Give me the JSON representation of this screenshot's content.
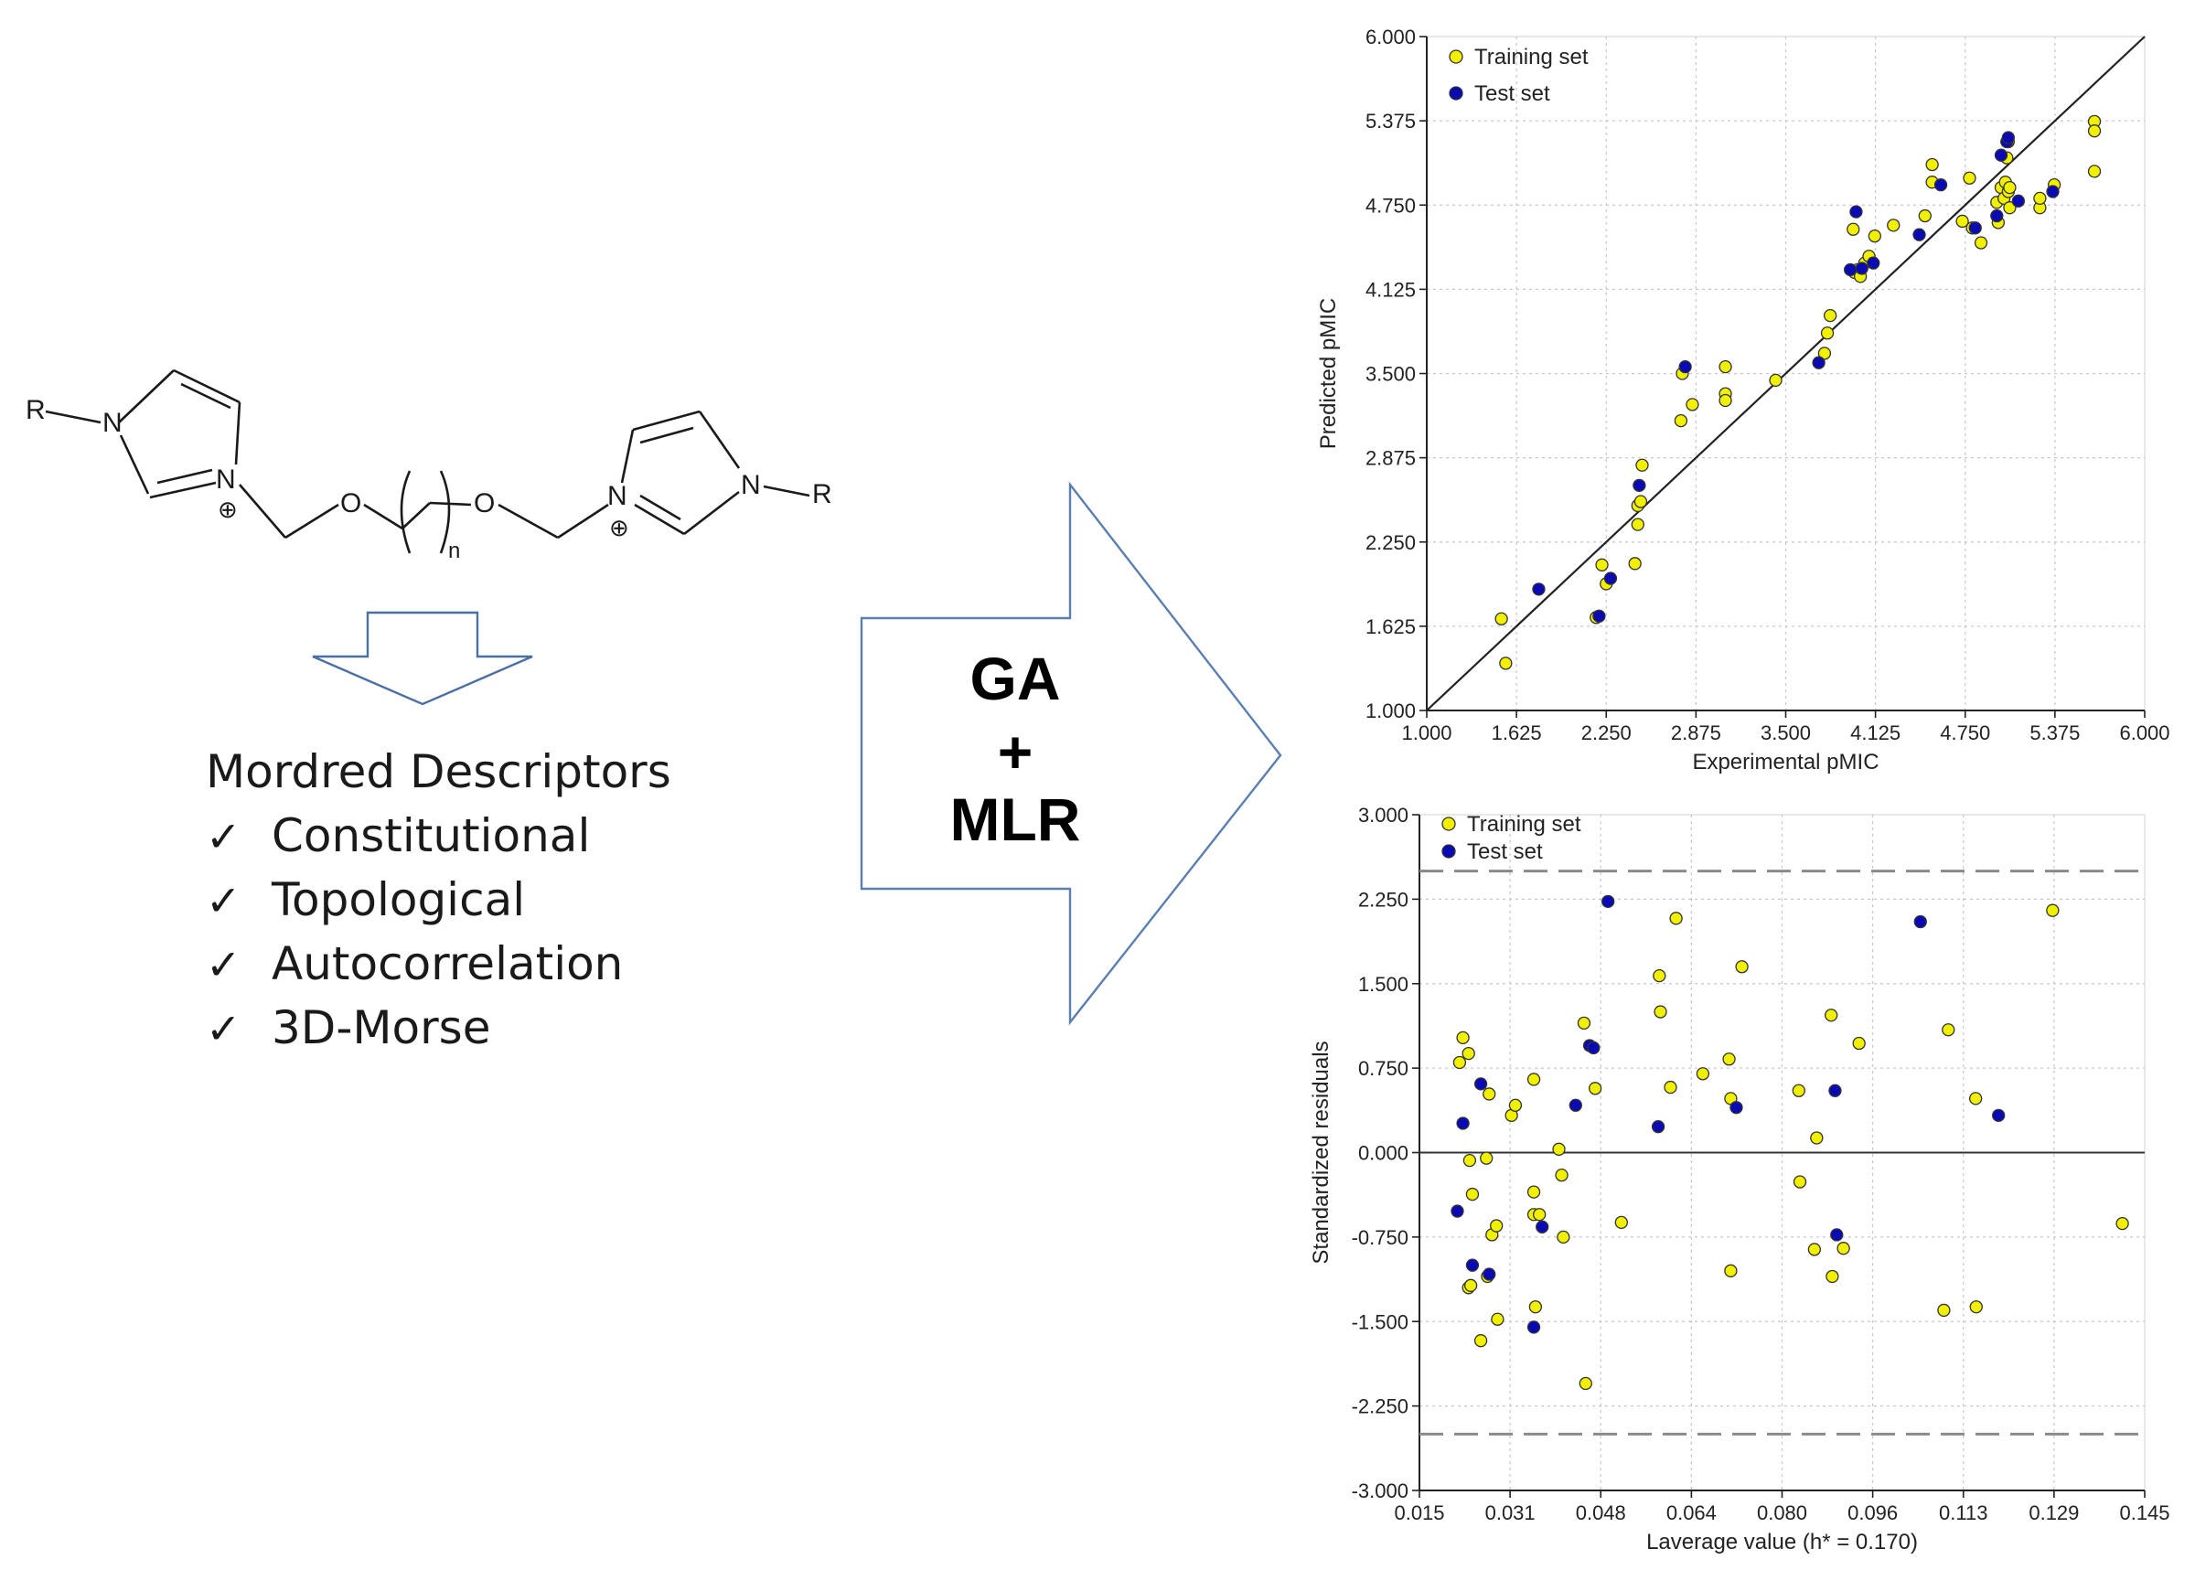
{
  "molecule": {
    "r_left": "R",
    "n_left": "N",
    "n_plus_left": "N",
    "o_left": "O",
    "subscript_n": "n",
    "o_right": "O",
    "n_plus_right": "N",
    "n_right": "N",
    "r_right": "R",
    "charge_symbol": "⊕"
  },
  "descriptors": {
    "title": "Mordred Descriptors",
    "check_symbol": "✓",
    "items": [
      "Constitutional",
      "Topological",
      "Autocorrelation",
      "3D-Morse"
    ]
  },
  "method_arrow": {
    "line1": "GA",
    "line2": "+",
    "line3": "MLR"
  },
  "chart_data": [
    {
      "type": "scatter",
      "title": "",
      "xlabel": "Experimental pMIC",
      "ylabel": "Predicted pMIC",
      "xlim": [
        1.0,
        6.0
      ],
      "ylim": [
        1.0,
        6.0
      ],
      "x_ticks": [
        "1.000",
        "1.625",
        "2.250",
        "2.875",
        "3.500",
        "4.125",
        "4.750",
        "5.375",
        "6.000"
      ],
      "y_ticks": [
        "1.000",
        "1.625",
        "2.250",
        "2.875",
        "3.500",
        "4.125",
        "4.750",
        "5.375",
        "6.000"
      ],
      "grid": true,
      "legend_position": "top-left",
      "reference_line": {
        "from": [
          1.0,
          1.0
        ],
        "to": [
          6.0,
          6.0
        ]
      },
      "series": [
        {
          "name": "Training set",
          "color": "#f0f000",
          "points": [
            [
              1.52,
              1.68
            ],
            [
              1.55,
              1.35
            ],
            [
              2.18,
              1.69
            ],
            [
              2.22,
              2.08
            ],
            [
              2.25,
              1.94
            ],
            [
              2.45,
              2.09
            ],
            [
              2.47,
              2.38
            ],
            [
              2.47,
              2.52
            ],
            [
              2.49,
              2.55
            ],
            [
              2.5,
              2.82
            ],
            [
              2.77,
              3.15
            ],
            [
              2.78,
              3.5
            ],
            [
              2.85,
              3.27
            ],
            [
              3.08,
              3.55
            ],
            [
              3.08,
              3.35
            ],
            [
              3.08,
              3.3
            ],
            [
              3.43,
              3.45
            ],
            [
              3.77,
              3.65
            ],
            [
              3.79,
              3.8
            ],
            [
              3.81,
              3.93
            ],
            [
              3.97,
              4.57
            ],
            [
              3.98,
              4.25
            ],
            [
              4.0,
              4.27
            ],
            [
              4.02,
              4.22
            ],
            [
              4.05,
              4.32
            ],
            [
              4.08,
              4.37
            ],
            [
              4.12,
              4.52
            ],
            [
              4.25,
              4.6
            ],
            [
              4.47,
              4.67
            ],
            [
              4.52,
              4.92
            ],
            [
              4.52,
              5.05
            ],
            [
              4.73,
              4.63
            ],
            [
              4.78,
              4.95
            ],
            [
              4.8,
              4.58
            ],
            [
              4.86,
              4.47
            ],
            [
              4.97,
              4.77
            ],
            [
              4.98,
              4.62
            ],
            [
              5.0,
              4.88
            ],
            [
              5.02,
              4.8
            ],
            [
              5.03,
              4.92
            ],
            [
              5.04,
              5.1
            ],
            [
              5.05,
              5.22
            ],
            [
              5.05,
              4.85
            ],
            [
              5.06,
              4.73
            ],
            [
              5.06,
              4.88
            ],
            [
              5.27,
              4.73
            ],
            [
              5.27,
              4.8
            ],
            [
              5.37,
              4.9
            ],
            [
              5.65,
              5.37
            ],
            [
              5.65,
              5.3
            ],
            [
              5.65,
              5.0
            ]
          ]
        },
        {
          "name": "Test set",
          "color": "#0a0ab4",
          "points": [
            [
              1.78,
              1.9
            ],
            [
              2.2,
              1.7
            ],
            [
              2.28,
              1.98
            ],
            [
              2.48,
              2.67
            ],
            [
              2.8,
              3.55
            ],
            [
              3.73,
              3.58
            ],
            [
              3.95,
              4.27
            ],
            [
              3.99,
              4.7
            ],
            [
              4.03,
              4.28
            ],
            [
              4.11,
              4.32
            ],
            [
              4.43,
              4.53
            ],
            [
              4.58,
              4.9
            ],
            [
              4.82,
              4.58
            ],
            [
              4.97,
              4.67
            ],
            [
              5.0,
              5.12
            ],
            [
              5.04,
              5.22
            ],
            [
              5.05,
              5.25
            ],
            [
              5.12,
              4.78
            ],
            [
              5.36,
              4.85
            ]
          ]
        }
      ]
    },
    {
      "type": "scatter",
      "title": "",
      "xlabel": "Laverage value (h* = 0.170)",
      "ylabel": "Standardized residuals",
      "xlim": [
        0.015,
        0.145
      ],
      "ylim": [
        -3.0,
        3.0
      ],
      "x_ticks": [
        "0.015",
        "0.031",
        "0.048",
        "0.064",
        "0.080",
        "0.096",
        "0.113",
        "0.129",
        "0.145"
      ],
      "y_ticks": [
        "3.000",
        "2.250",
        "1.500",
        "0.750",
        "0.000",
        "-0.750",
        "-1.500",
        "-2.250",
        "-3.000"
      ],
      "grid": true,
      "legend_position": "top-left",
      "zero_line": 0.0,
      "threshold_lines": [
        2.5,
        -2.5
      ],
      "series": [
        {
          "name": "Training set",
          "color": "#f0f000",
          "points": [
            [
              0.0222,
              0.8
            ],
            [
              0.0228,
              1.02
            ],
            [
              0.0238,
              0.88
            ],
            [
              0.024,
              -0.07
            ],
            [
              0.0245,
              -0.37
            ],
            [
              0.0238,
              -1.2
            ],
            [
              0.0242,
              -1.18
            ],
            [
              0.026,
              -1.67
            ],
            [
              0.027,
              -0.05
            ],
            [
              0.0272,
              -1.1
            ],
            [
              0.0275,
              0.52
            ],
            [
              0.028,
              -0.73
            ],
            [
              0.0288,
              -0.65
            ],
            [
              0.029,
              -1.48
            ],
            [
              0.0315,
              0.33
            ],
            [
              0.0322,
              0.42
            ],
            [
              0.0355,
              0.65
            ],
            [
              0.0355,
              -0.35
            ],
            [
              0.0355,
              -0.55
            ],
            [
              0.0358,
              -1.37
            ],
            [
              0.0365,
              -0.55
            ],
            [
              0.04,
              0.03
            ],
            [
              0.0405,
              -0.2
            ],
            [
              0.0408,
              -0.75
            ],
            [
              0.0445,
              1.15
            ],
            [
              0.0448,
              -2.05
            ],
            [
              0.0465,
              0.57
            ],
            [
              0.0512,
              -0.62
            ],
            [
              0.058,
              1.57
            ],
            [
              0.0582,
              1.25
            ],
            [
              0.06,
              0.58
            ],
            [
              0.061,
              2.08
            ],
            [
              0.0658,
              0.7
            ],
            [
              0.0705,
              0.83
            ],
            [
              0.0708,
              0.48
            ],
            [
              0.0708,
              -1.05
            ],
            [
              0.0728,
              1.65
            ],
            [
              0.083,
              0.55
            ],
            [
              0.0832,
              -0.26
            ],
            [
              0.0858,
              -0.86
            ],
            [
              0.0862,
              0.13
            ],
            [
              0.0888,
              1.22
            ],
            [
              0.089,
              -1.1
            ],
            [
              0.091,
              -0.85
            ],
            [
              0.0938,
              0.97
            ],
            [
              0.109,
              -1.4
            ],
            [
              0.1098,
              1.09
            ],
            [
              0.1147,
              0.48
            ],
            [
              0.1148,
              -1.37
            ],
            [
              0.1285,
              2.15
            ],
            [
              0.141,
              -0.63
            ]
          ]
        },
        {
          "name": "Test set",
          "color": "#0a0ab4",
          "points": [
            [
              0.0218,
              -0.52
            ],
            [
              0.0228,
              0.26
            ],
            [
              0.0245,
              -1.0
            ],
            [
              0.026,
              0.61
            ],
            [
              0.0275,
              -1.08
            ],
            [
              0.0355,
              -1.55
            ],
            [
              0.037,
              -0.66
            ],
            [
              0.043,
              0.42
            ],
            [
              0.0455,
              0.95
            ],
            [
              0.0462,
              0.93
            ],
            [
              0.0488,
              2.23
            ],
            [
              0.0578,
              0.23
            ],
            [
              0.0718,
              0.4
            ],
            [
              0.0895,
              0.55
            ],
            [
              0.0898,
              -0.73
            ],
            [
              0.1048,
              2.05
            ],
            [
              0.1188,
              0.33
            ]
          ]
        }
      ]
    }
  ]
}
